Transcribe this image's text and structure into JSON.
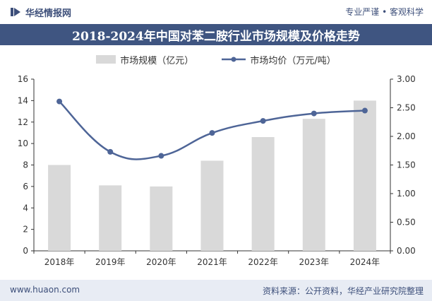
{
  "header": {
    "brand": "华经情报网",
    "tagline": "专业严谨 • 客观科学"
  },
  "title": "2018-2024年中国对苯二胺行业市场规模及价格走势",
  "legend": {
    "bar_label": "市场规模（亿元）",
    "line_label": "市场均价（万元/吨）"
  },
  "footer": {
    "url": "www.huaon.com",
    "source": "资料来源：公开资料，华经产业研究院整理"
  },
  "colors": {
    "bar": "#d9d9d9",
    "line": "#4e6597",
    "title_bg": "#3f5581",
    "footer_bg": "#e8ecf4"
  },
  "chart_data": {
    "type": "bar",
    "categories": [
      "2018年",
      "2019年",
      "2020年",
      "2021年",
      "2022年",
      "2023年",
      "2024年"
    ],
    "series": [
      {
        "name": "市场规模（亿元）",
        "type": "bar",
        "axis": "left",
        "values": [
          8.0,
          6.1,
          6.0,
          8.4,
          10.6,
          12.3,
          14.0
        ]
      },
      {
        "name": "市场均价（万元/吨）",
        "type": "line",
        "axis": "right",
        "values": [
          2.61,
          1.73,
          1.66,
          2.06,
          2.27,
          2.4,
          2.45
        ]
      }
    ],
    "y_left": {
      "ylim": [
        0,
        16
      ],
      "ticks": [
        "0",
        "2",
        "4",
        "6",
        "8",
        "10",
        "12",
        "14",
        "16"
      ]
    },
    "y_right": {
      "ylim": [
        0,
        3
      ],
      "ticks": [
        "0.00",
        "0.50",
        "1.00",
        "1.50",
        "2.00",
        "2.50",
        "3.00"
      ]
    },
    "grid": false
  }
}
